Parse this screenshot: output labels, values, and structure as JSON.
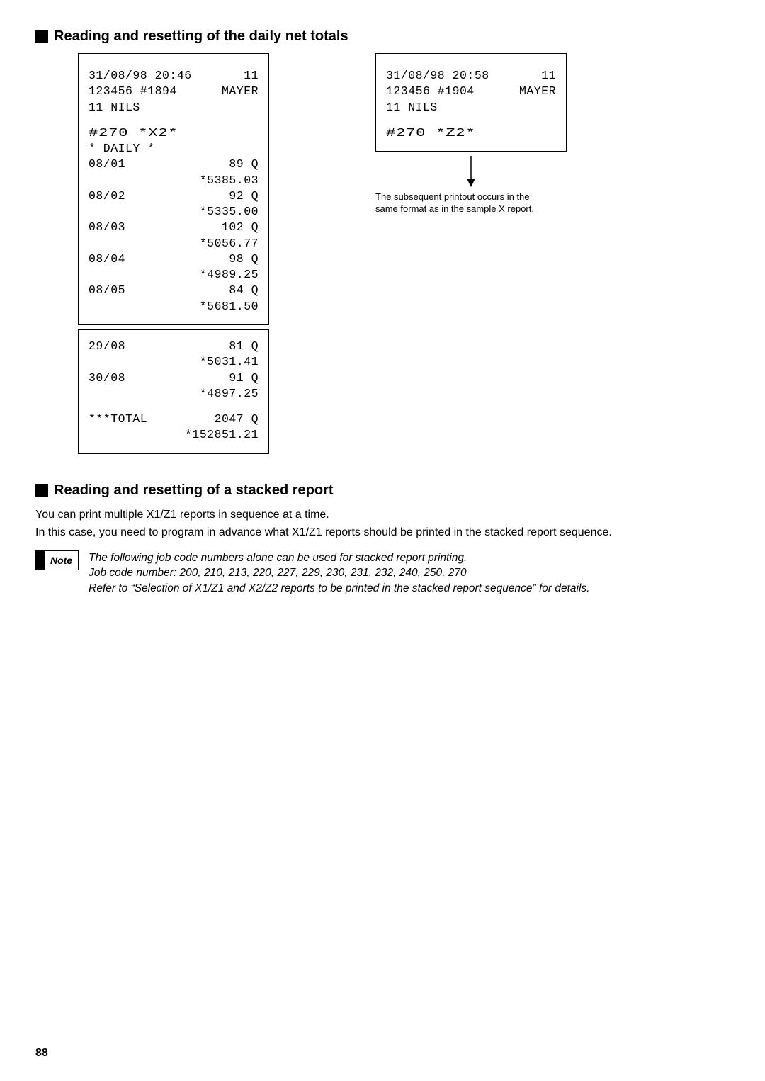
{
  "section1": {
    "title": "Reading and resetting of the daily net totals"
  },
  "section2": {
    "title": "Reading and resetting of a stacked report",
    "p1": "You can print multiple X1/Z1 reports in sequence at a time.",
    "p2": "In this case, you need to program in advance what X1/Z1 reports should be printed in the stacked report sequence."
  },
  "receipt_x": {
    "h1_l": "31/08/98 20:46",
    "h1_r": "11",
    "h2_l": "123456 #1894",
    "h2_r": "MAYER",
    "h3": "11 NILS",
    "code": "#270  *X2*",
    "daily": "* DAILY  *",
    "rows_top": [
      {
        "d": "08/01",
        "q": "89 Q",
        "a": "*5385.03"
      },
      {
        "d": "08/02",
        "q": "92 Q",
        "a": "*5335.00"
      },
      {
        "d": "08/03",
        "q": "102 Q",
        "a": "*5056.77"
      },
      {
        "d": "08/04",
        "q": "98 Q",
        "a": "*4989.25"
      },
      {
        "d": "08/05",
        "q": "84 Q",
        "a": "*5681.50"
      }
    ],
    "rows_bot": [
      {
        "d": "29/08",
        "q": "81 Q",
        "a": "*5031.41"
      },
      {
        "d": "30/08",
        "q": "91 Q",
        "a": "*4897.25"
      }
    ],
    "tot_l": "***TOTAL",
    "tot_q": "2047 Q",
    "tot_a": "*152851.21"
  },
  "receipt_z": {
    "h1_l": "31/08/98 20:58",
    "h1_r": "11",
    "h2_l": "123456 #1904",
    "h2_r": "MAYER",
    "h3": "11 NILS",
    "code": "#270  *Z2*",
    "note1": "The subsequent printout occurs in the",
    "note2": "same format as in the sample X report."
  },
  "note": {
    "label": "Note",
    "l1": "The following job code numbers alone can be used for stacked report printing.",
    "l2": "Job code number: 200, 210, 213, 220, 227, 229, 230, 231, 232, 240, 250, 270",
    "l3": "Refer to “Selection of X1/Z1 and X2/Z2 reports to be printed in the stacked report sequence” for details."
  },
  "page": "88"
}
